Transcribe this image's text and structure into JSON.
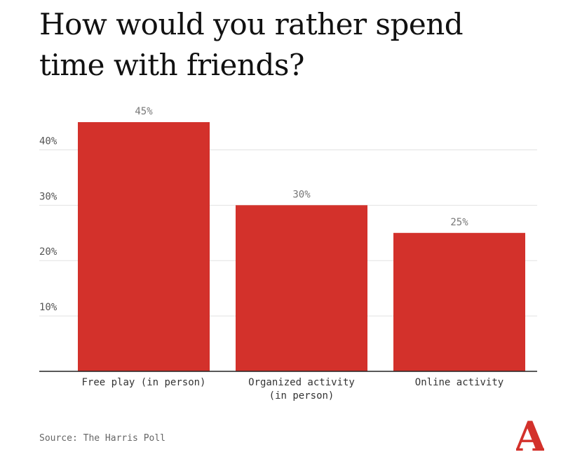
{
  "title": "How would you rather spend time with friends?",
  "source": "Source: The Harris Poll",
  "brand": {
    "logo_letter": "A",
    "logo_color": "#d3312b"
  },
  "chart_data": {
    "type": "bar",
    "categories": [
      [
        "Free play (in person)"
      ],
      [
        "Organized activity",
        "(in person)"
      ],
      [
        "Online activity"
      ]
    ],
    "values": [
      45,
      30,
      25
    ],
    "value_labels": [
      "45%",
      "30%",
      "25%"
    ],
    "y_ticks": [
      10,
      20,
      30,
      40
    ],
    "y_tick_labels": [
      "10%",
      "20%",
      "30%",
      "40%"
    ],
    "ylim": [
      0,
      45
    ],
    "bar_color": "#d3312b",
    "gridline_color": "#e2e2e2",
    "axis_color": "#222222",
    "grid": true
  }
}
